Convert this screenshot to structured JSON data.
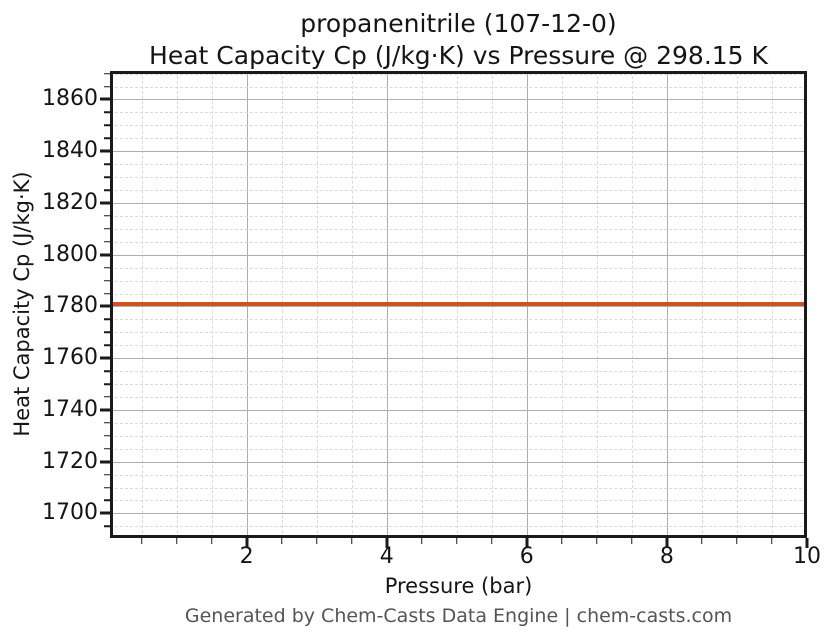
{
  "header": {
    "title_line1": "propanenitrile (107-12-0)",
    "title_line2": "Heat Capacity Cp (J/kg·K) vs Pressure @ 298.15 K"
  },
  "footer": {
    "credit": "Generated by Chem-Casts Data Engine | chem-casts.com"
  },
  "chart_data": {
    "type": "line",
    "title": "propanenitrile (107-12-0)",
    "subtitle": "Heat Capacity Cp (J/kg·K) vs Pressure @ 298.15 K",
    "xlabel": "Pressure (bar)",
    "ylabel": "Heat Capacity Cp (J/kg·K)",
    "xlim": [
      0.05,
      10
    ],
    "ylim": [
      1690.5,
      1871
    ],
    "x_major_ticks": [
      2,
      4,
      6,
      8,
      10
    ],
    "x_minor_step": 0.5,
    "y_major_ticks": [
      1700,
      1720,
      1740,
      1760,
      1780,
      1800,
      1820,
      1840,
      1860
    ],
    "y_minor_step": 5,
    "grid": {
      "major_style": "solid",
      "minor_style": "dashed"
    },
    "legend": "none",
    "series": [
      {
        "name": "Heat Capacity Cp",
        "color": "#d0521e",
        "x": [
          0.05,
          10
        ],
        "y": [
          1781,
          1781
        ],
        "constant_value": 1781
      }
    ]
  },
  "colors": {
    "line": "#d0521e",
    "major_grid": "#aeaeae",
    "minor_grid": "#dadada",
    "axis_frame": "#1a1a1a",
    "text": "#151515",
    "footer_text": "#555555",
    "background": "#ffffff"
  }
}
